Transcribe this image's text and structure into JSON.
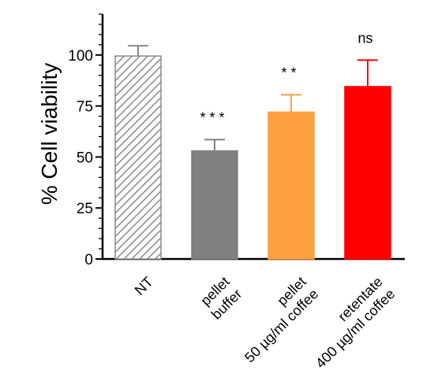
{
  "chart_data": {
    "type": "bar",
    "title": "",
    "ylabel": "% Cell viability",
    "xlabel": "",
    "ylim": [
      0,
      120
    ],
    "yticks": [
      0,
      25,
      50,
      75,
      100
    ],
    "grid": false,
    "legend": "none",
    "categories": [
      {
        "id": "nt",
        "lines": [
          "NT"
        ]
      },
      {
        "id": "pellet-buffer",
        "lines": [
          "pellet",
          "buffer"
        ]
      },
      {
        "id": "pellet-coffee",
        "lines": [
          "pellet",
          "50 µg/ml coffee"
        ]
      },
      {
        "id": "retentate-coffee",
        "lines": [
          "retentate",
          "400 µg/ml coffee"
        ]
      }
    ],
    "values": [
      99.5,
      53,
      72,
      84.5
    ],
    "errors": [
      5,
      5.5,
      8.5,
      13
    ],
    "significance": [
      "",
      "* * *",
      "* *",
      "ns"
    ],
    "colors": [
      "#ffffff",
      "#808080",
      "#ffa040",
      "#ff0000"
    ],
    "patterns": [
      "diagonal-hatch",
      "solid",
      "solid",
      "solid"
    ]
  }
}
